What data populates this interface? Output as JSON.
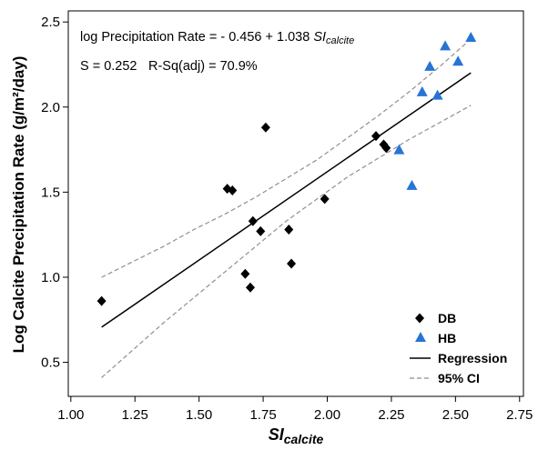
{
  "chart_data": {
    "type": "scatter",
    "xlabel": "SI",
    "xlabel_sub": "calcite",
    "ylabel": "Log Calcite Precipitation Rate (g/m²/day)",
    "xlim": [
      0.99,
      2.765
    ],
    "ylim": [
      0.3,
      2.565
    ],
    "x_ticks": [
      1.0,
      1.25,
      1.5,
      1.75,
      2.0,
      2.25,
      2.5,
      2.75
    ],
    "x_tick_labels": [
      "1.00",
      "1.25",
      "1.50",
      "1.75",
      "2.00",
      "2.25",
      "2.50",
      "2.75"
    ],
    "y_ticks": [
      0.5,
      1.0,
      1.5,
      2.0,
      2.5
    ],
    "y_tick_labels": [
      "0.5",
      "1.0",
      "1.5",
      "2.0",
      "2.5"
    ],
    "grid": false,
    "legend_position": "bottom-right",
    "series": [
      {
        "name": "DB",
        "marker": "diamond",
        "color": "#000000",
        "x": [
          1.12,
          1.61,
          1.63,
          1.76,
          1.71,
          1.74,
          1.68,
          1.7,
          1.85,
          1.86,
          1.99,
          2.19,
          2.22,
          2.23
        ],
        "y": [
          0.86,
          1.52,
          1.51,
          1.88,
          1.33,
          1.27,
          1.02,
          0.94,
          1.28,
          1.08,
          1.46,
          1.83,
          1.78,
          1.76
        ]
      },
      {
        "name": "HB",
        "marker": "triangle",
        "color": "#2774d6",
        "x": [
          2.56,
          2.46,
          2.51,
          2.4,
          2.37,
          2.43,
          2.28,
          2.33
        ],
        "y": [
          2.41,
          2.36,
          2.27,
          2.24,
          2.09,
          2.07,
          1.75,
          1.54
        ]
      }
    ],
    "regression": {
      "name": "Regression",
      "intercept": -0.456,
      "slope": 1.038,
      "x_range": [
        1.12,
        2.56
      ],
      "color": "#000000"
    },
    "confidence_band": {
      "name": "95% CI",
      "color": "#8f8f8f",
      "x": [
        1.12,
        1.24,
        1.36,
        1.48,
        1.6,
        1.72,
        1.84,
        1.96,
        2.08,
        2.2,
        2.32,
        2.44,
        2.56
      ],
      "upper": [
        1.0,
        1.09,
        1.18,
        1.28,
        1.37,
        1.47,
        1.58,
        1.69,
        1.82,
        1.95,
        2.09,
        2.24,
        2.4
      ],
      "lower": [
        0.41,
        0.57,
        0.73,
        0.88,
        1.03,
        1.18,
        1.33,
        1.46,
        1.59,
        1.7,
        1.81,
        1.91,
        2.01
      ]
    },
    "annotations": {
      "equation_prefix": "log Precipitation Rate = - 0.456 + 1.038",
      "equation_var": "SI",
      "equation_var_sub": "calcite",
      "s": "S = 0.252",
      "r_sq_adj": "R-Sq(adj) = 70.9%"
    }
  }
}
